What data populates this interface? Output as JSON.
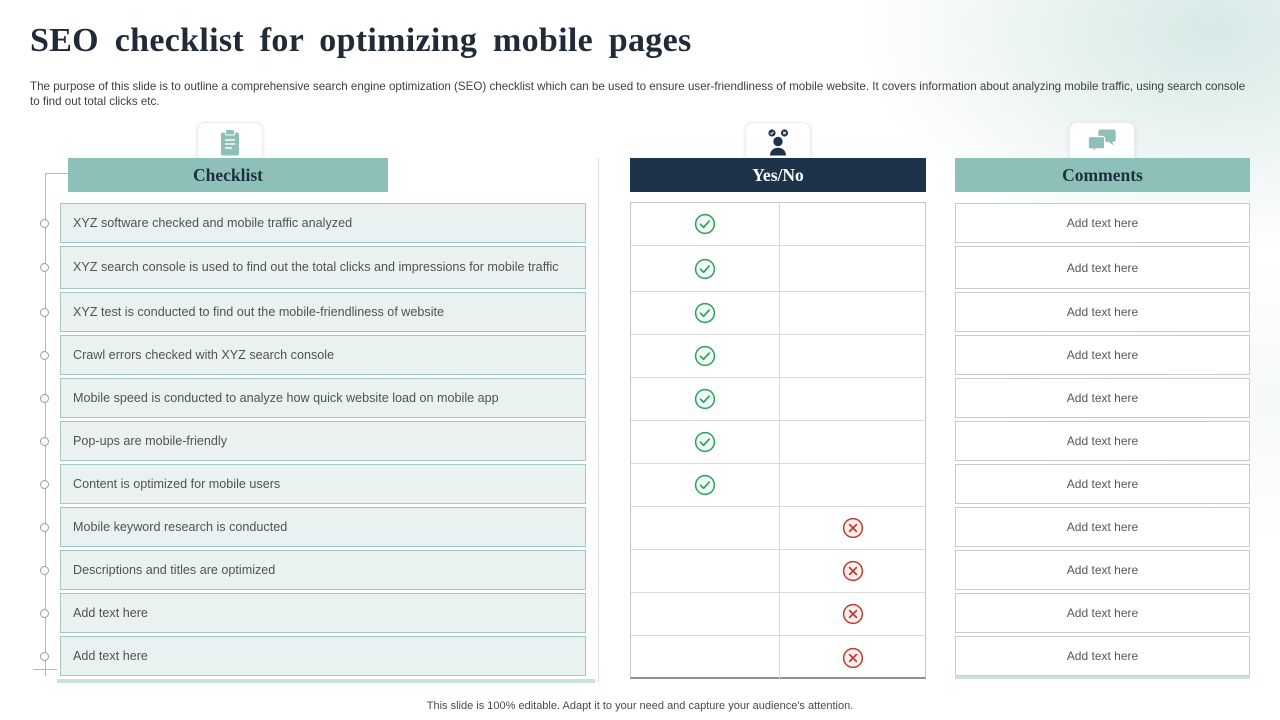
{
  "slide": {
    "title": "SEO checklist for optimizing mobile pages",
    "description": "The purpose of this slide is to outline a comprehensive search engine optimization (SEO) checklist which can be used to ensure user-friendliness of mobile website. It covers information about analyzing mobile traffic, using search console to find out total clicks etc.",
    "footer": "This slide is 100% editable. Adapt it to your need and capture your audience's attention."
  },
  "columns": {
    "checklist": {
      "header": "Checklist",
      "icon": "clipboard-icon"
    },
    "yesno": {
      "header": "Yes/No",
      "icon": "person-check-x-icon"
    },
    "comments": {
      "header": "Comments",
      "icon": "chat-bubbles-icon"
    }
  },
  "status_icons": {
    "yes": "check-circle-icon",
    "no": "cross-circle-icon"
  },
  "rows": [
    {
      "item": "XYZ software checked and mobile traffic analyzed",
      "status": "yes",
      "comment": "Add text here"
    },
    {
      "item": "XYZ search console is used to find out the total clicks and impressions for mobile traffic",
      "status": "yes",
      "comment": "Add text here"
    },
    {
      "item": "XYZ test is conducted to find out the mobile-friendliness of website",
      "status": "yes",
      "comment": "Add text here"
    },
    {
      "item": "Crawl errors checked with XYZ search console",
      "status": "yes",
      "comment": "Add text here"
    },
    {
      "item": "Mobile speed is conducted to analyze how quick website load on mobile app",
      "status": "yes",
      "comment": "Add text here"
    },
    {
      "item": "Pop-ups are mobile-friendly",
      "status": "yes",
      "comment": "Add text here"
    },
    {
      "item": "Content is optimized for mobile users",
      "status": "yes",
      "comment": "Add text here"
    },
    {
      "item": "Mobile keyword research is conducted",
      "status": "no",
      "comment": "Add text here"
    },
    {
      "item": "Descriptions and titles are optimized",
      "status": "no",
      "comment": "Add text here"
    },
    {
      "item": "Add text here",
      "status": "no",
      "comment": "Add text here"
    },
    {
      "item": "Add text here",
      "status": "no",
      "comment": "Add text here"
    }
  ],
  "colors": {
    "teal_accent": "#8ec0ba",
    "navy_accent": "#1d3349",
    "row_fill": "#e9f2f1",
    "yes_green": "#2ba05e",
    "no_red": "#c13a30"
  }
}
